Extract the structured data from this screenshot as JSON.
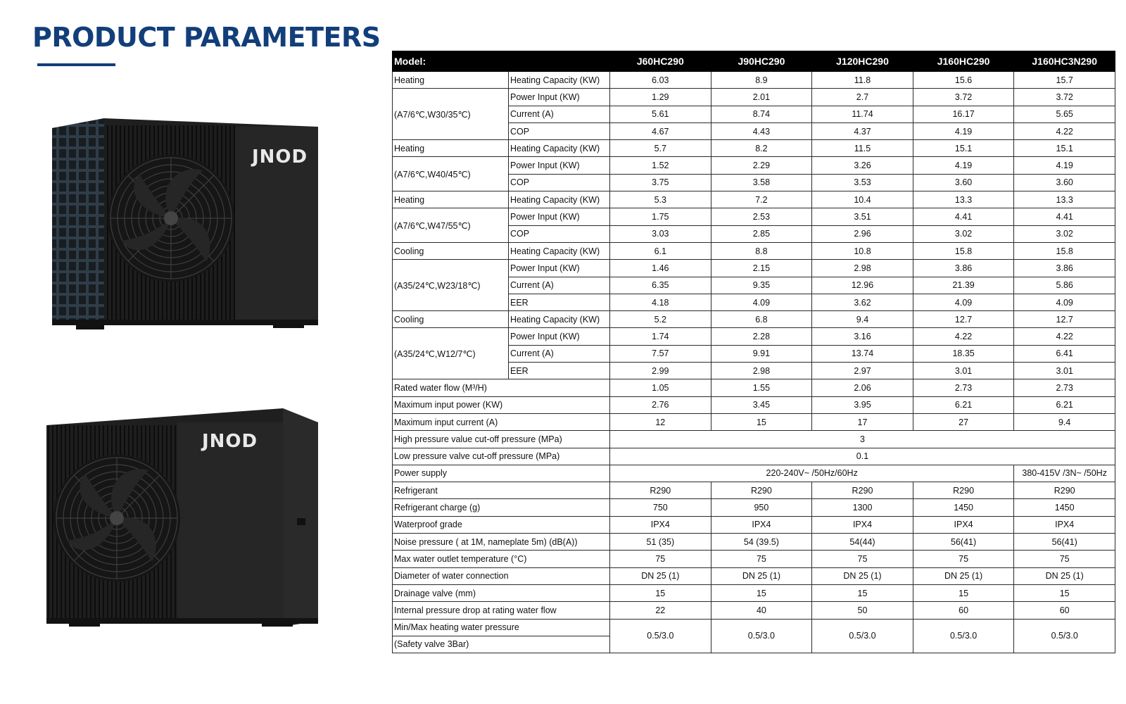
{
  "page": {
    "title": "PRODUCT PARAMETERS"
  },
  "images": {
    "brand_top": "JNOD",
    "brand_bottom": "JNOD"
  },
  "colors": {
    "title": "#123e7a",
    "header_bg": "#000000",
    "header_text": "#ffffff",
    "unit_body": "#1e1e1e"
  },
  "table": {
    "model_label": "Model:",
    "models": [
      "J60HC290",
      "J90HC290",
      "J120HC290",
      "J160HC290",
      "J160HC3N290"
    ],
    "groups": [
      {
        "labels": [
          "Heating",
          "(A7/6℃,W30/35℃)"
        ],
        "rows": [
          {
            "label": "Heating Capacity (KW)",
            "values": [
              "6.03",
              "8.9",
              "11.8",
              "15.6",
              "15.7"
            ]
          },
          {
            "label": "Power Input (KW)",
            "values": [
              "1.29",
              "2.01",
              "2.7",
              "3.72",
              "3.72"
            ]
          },
          {
            "label": "Current (A)",
            "values": [
              "5.61",
              "8.74",
              "11.74",
              "16.17",
              "5.65"
            ]
          },
          {
            "label": "COP",
            "values": [
              "4.67",
              "4.43",
              "4.37",
              "4.19",
              "4.22"
            ]
          }
        ]
      },
      {
        "labels": [
          "Heating",
          "(A7/6℃,W40/45℃)"
        ],
        "rows": [
          {
            "label": "Heating Capacity (KW)",
            "values": [
              "5.7",
              "8.2",
              "11.5",
              "15.1",
              "15.1"
            ]
          },
          {
            "label": "Power Input (KW)",
            "values": [
              "1.52",
              "2.29",
              "3.26",
              "4.19",
              "4.19"
            ]
          },
          {
            "label": "COP",
            "values": [
              "3.75",
              "3.58",
              "3.53",
              "3.60",
              "3.60"
            ]
          }
        ]
      },
      {
        "labels": [
          "Heating",
          "(A7/6℃,W47/55℃)"
        ],
        "rows": [
          {
            "label": "Heating Capacity (KW)",
            "values": [
              "5.3",
              "7.2",
              "10.4",
              "13.3",
              "13.3"
            ]
          },
          {
            "label": "Power Input (KW)",
            "values": [
              "1.75",
              "2.53",
              "3.51",
              "4.41",
              "4.41"
            ]
          },
          {
            "label": "COP",
            "values": [
              "3.03",
              "2.85",
              "2.96",
              "3.02",
              "3.02"
            ]
          }
        ]
      },
      {
        "labels": [
          "Cooling",
          "(A35/24℃,W23/18℃)"
        ],
        "rows": [
          {
            "label": "Heating Capacity (KW)",
            "values": [
              "6.1",
              "8.8",
              "10.8",
              "15.8",
              "15.8"
            ]
          },
          {
            "label": "Power Input (KW)",
            "values": [
              "1.46",
              "2.15",
              "2.98",
              "3.86",
              "3.86"
            ]
          },
          {
            "label": "Current (A)",
            "values": [
              "6.35",
              "9.35",
              "12.96",
              "21.39",
              "5.86"
            ]
          },
          {
            "label": "EER",
            "values": [
              "4.18",
              "4.09",
              "3.62",
              "4.09",
              "4.09"
            ]
          }
        ]
      },
      {
        "labels": [
          "Cooling",
          "(A35/24℃,W12/7℃)"
        ],
        "rows": [
          {
            "label": "Heating Capacity (KW)",
            "values": [
              "5.2",
              "6.8",
              "9.4",
              "12.7",
              "12.7"
            ]
          },
          {
            "label": "Power Input (KW)",
            "values": [
              "1.74",
              "2.28",
              "3.16",
              "4.22",
              "4.22"
            ]
          },
          {
            "label": "Current (A)",
            "values": [
              "7.57",
              "9.91",
              "13.74",
              "18.35",
              "6.41"
            ]
          },
          {
            "label": "EER",
            "values": [
              "2.99",
              "2.98",
              "2.97",
              "3.01",
              "3.01"
            ]
          }
        ]
      }
    ],
    "rows": [
      {
        "label": "Rated water flow (M³/H)",
        "values": [
          "1.05",
          "1.55",
          "2.06",
          "2.73",
          "2.73"
        ]
      },
      {
        "label": "Maximum input power (KW)",
        "values": [
          "2.76",
          "3.45",
          "3.95",
          "6.21",
          "6.21"
        ]
      },
      {
        "label": "Maximum input current (A)",
        "values": [
          "12",
          "15",
          "17",
          "27",
          "9.4"
        ]
      },
      {
        "label": "High pressure value cut-off pressure (MPa)",
        "merged": "3"
      },
      {
        "label": "Low pressure valve cut-off pressure (MPa)",
        "merged": "0.1"
      },
      {
        "label": "Power supply",
        "merged4": "220-240V~ /50Hz/60Hz",
        "last": "380-415V /3N~ /50Hz"
      },
      {
        "label": "Refrigerant",
        "values": [
          "R290",
          "R290",
          "R290",
          "R290",
          "R290"
        ]
      },
      {
        "label": "Refrigerant charge (g)",
        "values": [
          "750",
          "950",
          "1300",
          "1450",
          "1450"
        ]
      },
      {
        "label": "Waterproof grade",
        "values": [
          "IPX4",
          "IPX4",
          "IPX4",
          "IPX4",
          "IPX4"
        ]
      },
      {
        "label": "Noise pressure ( at 1M, nameplate 5m) (dB(A))",
        "values": [
          "51 (35)",
          "54 (39.5)",
          "54(44)",
          "56(41)",
          "56(41)"
        ]
      },
      {
        "label": "Max water outlet temperature (°C)",
        "values": [
          "75",
          "75",
          "75",
          "75",
          "75"
        ]
      },
      {
        "label": "Diameter of water connection",
        "values": [
          "DN 25 (1)",
          "DN 25 (1)",
          "DN 25 (1)",
          "DN 25 (1)",
          "DN 25 (1)"
        ]
      },
      {
        "label": "Drainage valve (mm)",
        "values": [
          "15",
          "15",
          "15",
          "15",
          "15"
        ]
      },
      {
        "label": "Internal pressure drop at rating water flow",
        "values": [
          "22",
          "40",
          "50",
          "60",
          "60"
        ]
      }
    ],
    "last_row": {
      "labels": [
        "Min/Max heating water pressure",
        "(Safety valve 3Bar)"
      ],
      "values": [
        "0.5/3.0",
        "0.5/3.0",
        "0.5/3.0",
        "0.5/3.0",
        "0.5/3.0"
      ]
    }
  }
}
